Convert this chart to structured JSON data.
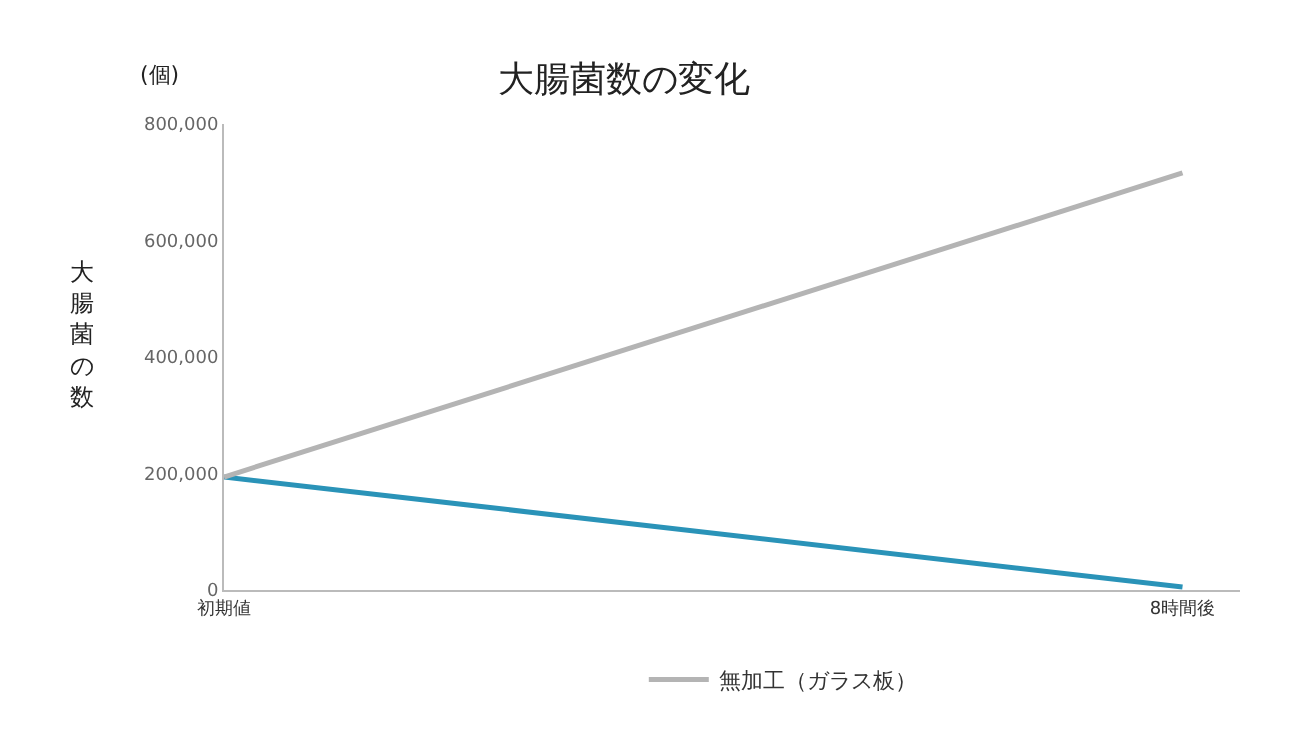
{
  "chart_data": {
    "type": "line",
    "title": "大腸菌数の変化",
    "ylabel": "大腸菌の数",
    "annotations": [
      "(個)"
    ],
    "categories": [
      "初期値",
      "8時間後"
    ],
    "series": [
      {
        "color": "#2a93b8",
        "values": [
          194000,
          5000
        ]
      },
      {
        "name": "無加工（ガラス板）",
        "color": "#b4b4b4",
        "values": [
          194000,
          716000
        ]
      }
    ],
    "ylim": [
      0,
      800000
    ],
    "yticks": [
      {
        "value": 0,
        "label": "0"
      },
      {
        "value": 200000,
        "label": "200,000"
      },
      {
        "value": 400000,
        "label": "400,000"
      },
      {
        "value": 600000,
        "label": "600,000"
      },
      {
        "value": 800000,
        "label": "800,000"
      }
    ],
    "legend": "bottom",
    "marker": "none",
    "line_style": "solid"
  }
}
